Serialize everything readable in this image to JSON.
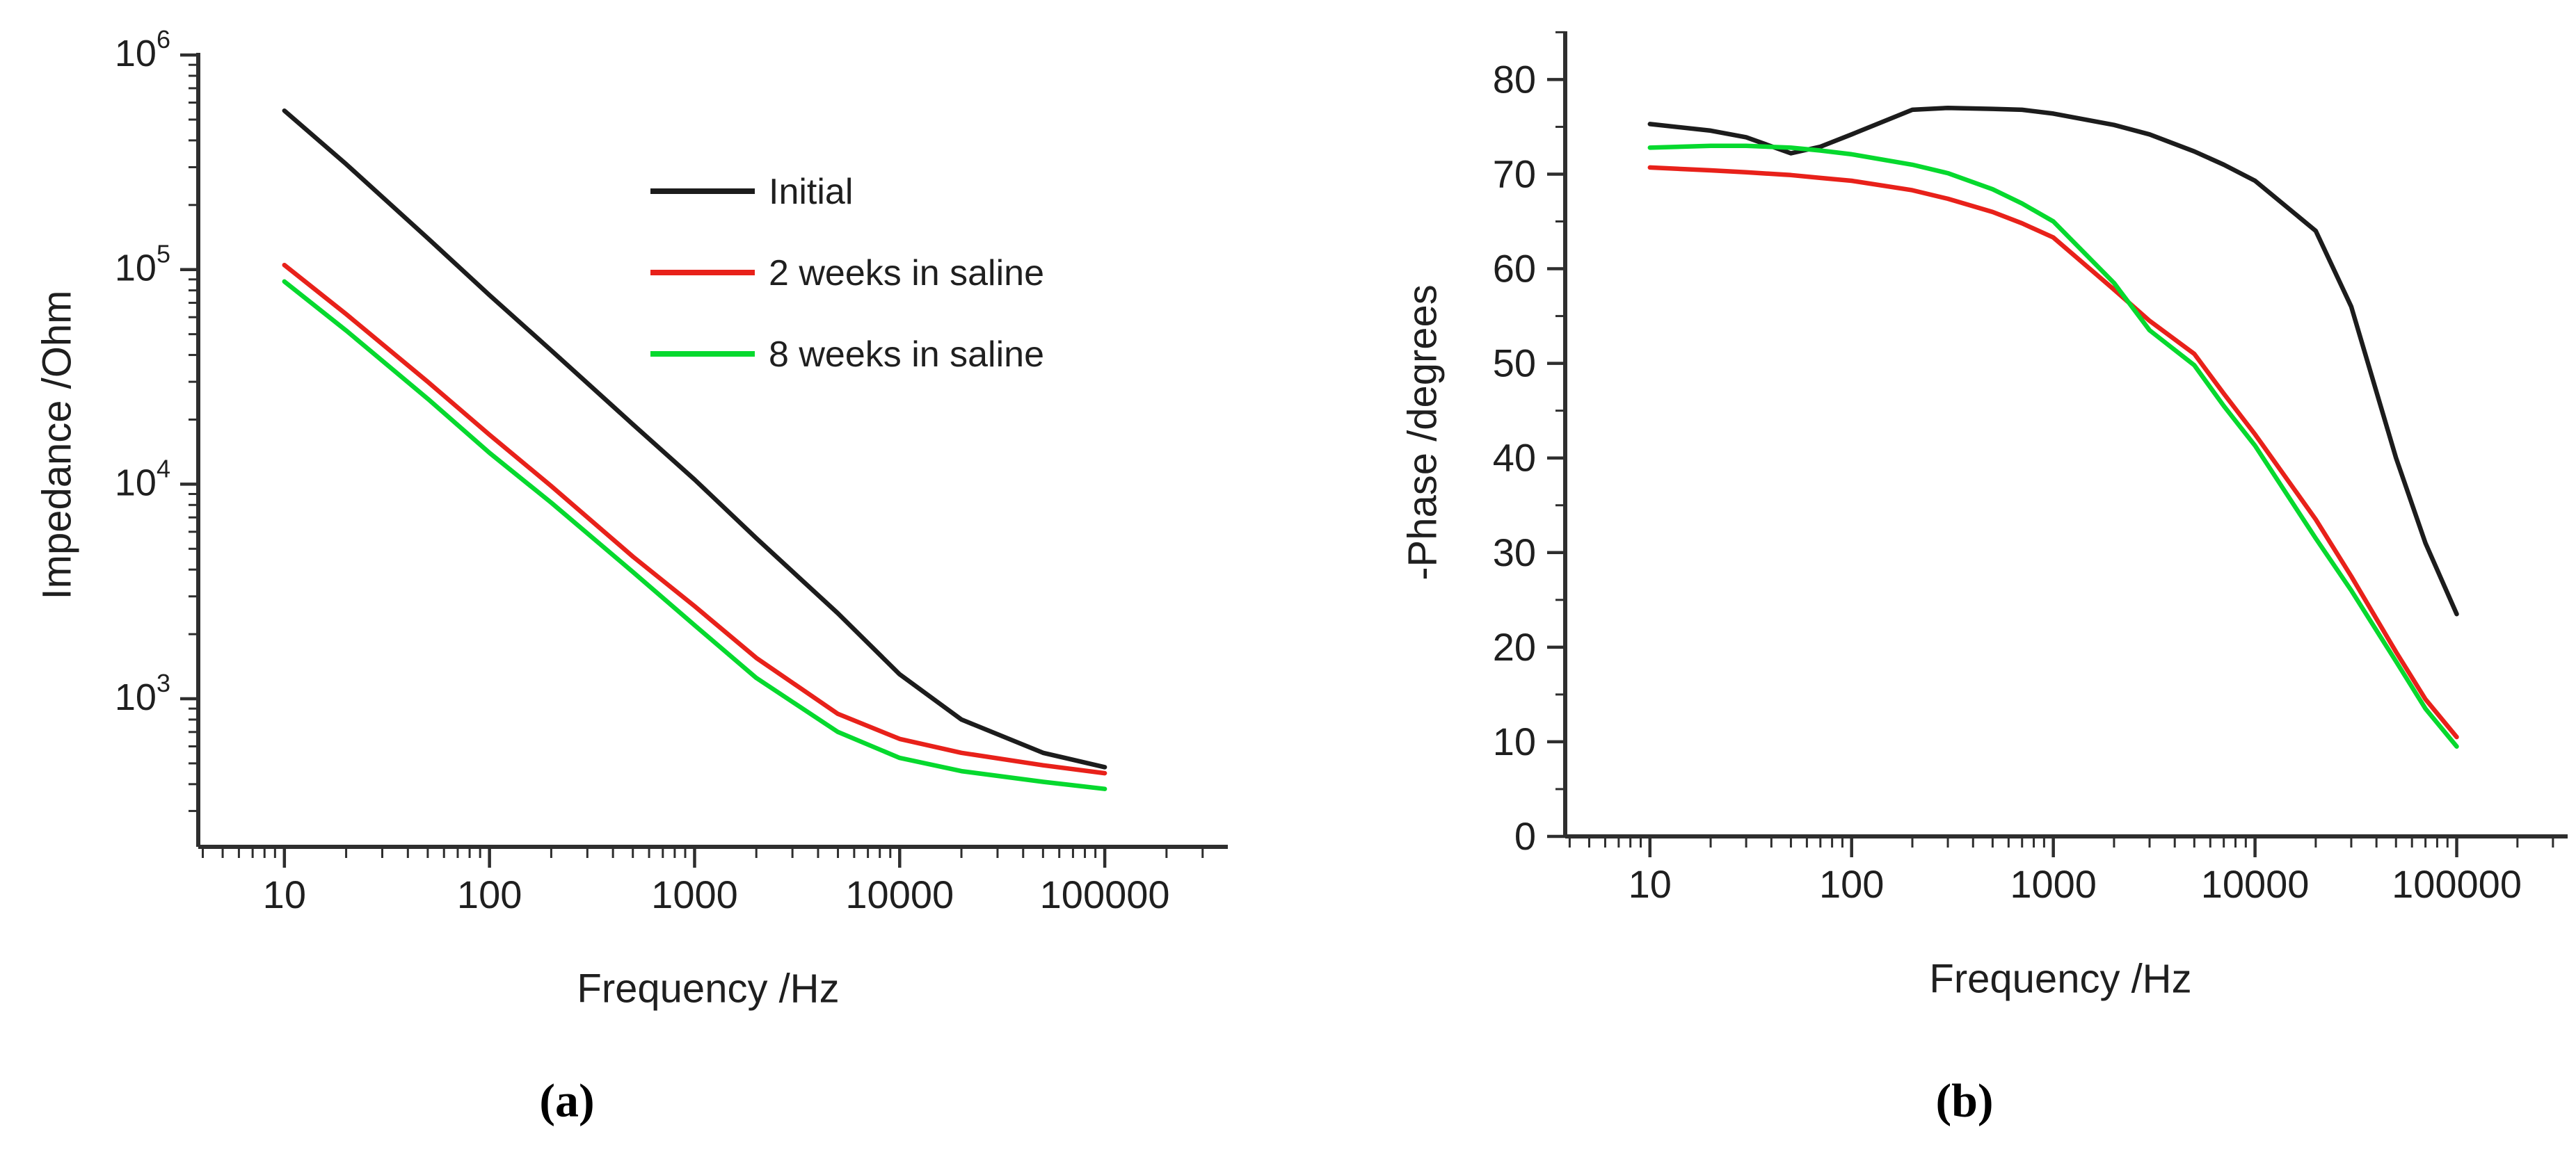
{
  "figure_description": "Two-panel Bode plot figure: (a) impedance magnitude vs frequency, (b) negative phase vs frequency, for electrodes initially and after 2 and 8 weeks in saline",
  "colors": {
    "initial": "#1c1c1c",
    "two_weeks": "#e8211a",
    "eight_weeks": "#06d92e",
    "axis": "#2e2e2e",
    "text": "#1f1f1f"
  },
  "legend": {
    "entries": [
      {
        "label": "Initial",
        "color": "#1c1c1c"
      },
      {
        "label": "2 weeks in saline",
        "color": "#e8211a"
      },
      {
        "label": "8 weeks in saline",
        "color": "#06d92e"
      }
    ]
  },
  "chart_data": [
    {
      "id": "a",
      "type": "line",
      "caption": "(a)",
      "xlabel": "Frequency /Hz",
      "ylabel": "Impedance /Ohm",
      "x_scale": "log",
      "y_scale": "log",
      "xlim_log": [
        0.58,
        5.6
      ],
      "ylim_log": [
        2.31,
        6.01
      ],
      "x_major_ticks": [
        10,
        100,
        1000,
        10000,
        100000
      ],
      "x_tick_labels": [
        "10",
        "100",
        "1000",
        "10000",
        "100000"
      ],
      "y_major_ticks": [
        1000,
        10000,
        100000,
        1000000
      ],
      "y_tick_labels": [
        {
          "base": "10",
          "exp": "3"
        },
        {
          "base": "10",
          "exp": "4"
        },
        {
          "base": "10",
          "exp": "5"
        },
        {
          "base": "10",
          "exp": "6"
        }
      ],
      "grid": false,
      "legend_position": "upper-right-inside",
      "series": [
        {
          "name": "Initial",
          "color": "#1c1c1c",
          "points": [
            [
              10,
              550000
            ],
            [
              20,
              310000
            ],
            [
              50,
              140000
            ],
            [
              100,
              76000
            ],
            [
              200,
              42000
            ],
            [
              500,
              19000
            ],
            [
              1000,
              10500
            ],
            [
              2000,
              5600
            ],
            [
              5000,
              2500
            ],
            [
              10000,
              1300
            ],
            [
              20000,
              800
            ],
            [
              50000,
              560
            ],
            [
              100000,
              480
            ]
          ]
        },
        {
          "name": "2 weeks in saline",
          "color": "#e8211a",
          "points": [
            [
              10,
              105000
            ],
            [
              20,
              62000
            ],
            [
              50,
              30000
            ],
            [
              100,
              17000
            ],
            [
              200,
              9800
            ],
            [
              500,
              4600
            ],
            [
              1000,
              2700
            ],
            [
              2000,
              1550
            ],
            [
              5000,
              850
            ],
            [
              10000,
              650
            ],
            [
              20000,
              560
            ],
            [
              50000,
              490
            ],
            [
              100000,
              450
            ]
          ]
        },
        {
          "name": "8 weeks in saline",
          "color": "#06d92e",
          "points": [
            [
              10,
              88000
            ],
            [
              20,
              52000
            ],
            [
              50,
              25000
            ],
            [
              100,
              14000
            ],
            [
              200,
              8200
            ],
            [
              500,
              3900
            ],
            [
              1000,
              2200
            ],
            [
              2000,
              1250
            ],
            [
              5000,
              700
            ],
            [
              10000,
              530
            ],
            [
              20000,
              460
            ],
            [
              50000,
              410
            ],
            [
              100000,
              380
            ]
          ]
        }
      ]
    },
    {
      "id": "b",
      "type": "line",
      "caption": "(b)",
      "xlabel": "Frequency /Hz",
      "ylabel": "-Phase /degrees",
      "x_scale": "log",
      "y_scale": "linear",
      "xlim_log": [
        0.58,
        5.55
      ],
      "ylim": [
        0,
        85.1
      ],
      "x_major_ticks": [
        10,
        100,
        1000,
        10000,
        100000
      ],
      "x_tick_labels": [
        "10",
        "100",
        "1000",
        "10000",
        "100000"
      ],
      "y_major_ticks": [
        0,
        10,
        20,
        30,
        40,
        50,
        60,
        70,
        80
      ],
      "y_tick_labels": [
        "0",
        "10",
        "20",
        "30",
        "40",
        "50",
        "60",
        "70",
        "80"
      ],
      "y_minor_step": 5,
      "grid": false,
      "series": [
        {
          "name": "Initial",
          "color": "#1c1c1c",
          "points": [
            [
              10,
              75.3
            ],
            [
              20,
              74.6
            ],
            [
              30,
              73.9
            ],
            [
              50,
              72.2
            ],
            [
              70,
              72.9
            ],
            [
              100,
              74.2
            ],
            [
              200,
              76.8
            ],
            [
              300,
              77.0
            ],
            [
              500,
              76.9
            ],
            [
              700,
              76.8
            ],
            [
              1000,
              76.4
            ],
            [
              2000,
              75.2
            ],
            [
              3000,
              74.2
            ],
            [
              5000,
              72.4
            ],
            [
              7000,
              71.0
            ],
            [
              10000,
              69.3
            ],
            [
              20000,
              64.0
            ],
            [
              30000,
              56.0
            ],
            [
              50000,
              40.0
            ],
            [
              70000,
              31.0
            ],
            [
              100000,
              23.5
            ]
          ]
        },
        {
          "name": "2 weeks in saline",
          "color": "#e8211a",
          "points": [
            [
              10,
              70.7
            ],
            [
              20,
              70.4
            ],
            [
              30,
              70.2
            ],
            [
              50,
              69.9
            ],
            [
              70,
              69.6
            ],
            [
              100,
              69.3
            ],
            [
              200,
              68.3
            ],
            [
              300,
              67.4
            ],
            [
              500,
              66.0
            ],
            [
              700,
              64.8
            ],
            [
              1000,
              63.3
            ],
            [
              2000,
              57.8
            ],
            [
              3000,
              54.5
            ],
            [
              5000,
              51.0
            ],
            [
              7000,
              46.8
            ],
            [
              10000,
              42.5
            ],
            [
              20000,
              33.5
            ],
            [
              30000,
              27.5
            ],
            [
              50000,
              19.5
            ],
            [
              70000,
              14.5
            ],
            [
              100000,
              10.5
            ]
          ]
        },
        {
          "name": "8 weeks in saline",
          "color": "#06d92e",
          "points": [
            [
              10,
              72.8
            ],
            [
              20,
              73.0
            ],
            [
              30,
              73.0
            ],
            [
              50,
              72.8
            ],
            [
              70,
              72.5
            ],
            [
              100,
              72.1
            ],
            [
              200,
              71.0
            ],
            [
              300,
              70.1
            ],
            [
              500,
              68.4
            ],
            [
              700,
              66.9
            ],
            [
              1000,
              65.0
            ],
            [
              2000,
              58.5
            ],
            [
              3000,
              53.5
            ],
            [
              5000,
              49.8
            ],
            [
              7000,
              45.5
            ],
            [
              10000,
              41.3
            ],
            [
              20000,
              31.5
            ],
            [
              30000,
              26.0
            ],
            [
              50000,
              18.5
            ],
            [
              70000,
              13.5
            ],
            [
              100000,
              9.5
            ]
          ]
        }
      ]
    }
  ]
}
